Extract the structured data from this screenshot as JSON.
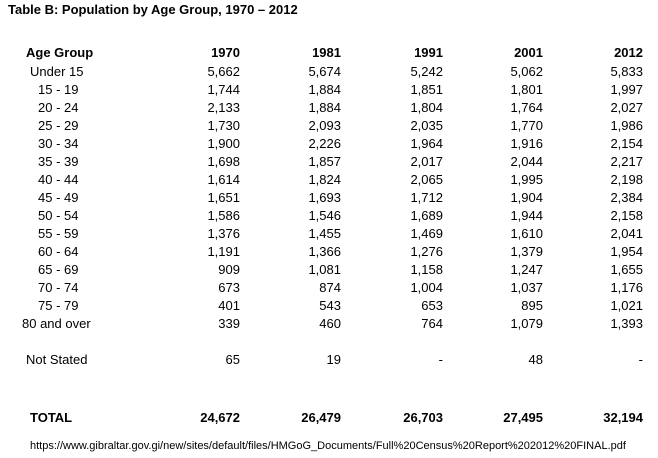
{
  "title": "Table B:  Population by Age Group, 1970 – 2012",
  "columns": [
    "Age Group",
    "1970",
    "1981",
    "1991",
    "2001",
    "2012"
  ],
  "rows": [
    {
      "group": "Under 15",
      "values": [
        "5,662",
        "5,674",
        "5,242",
        "5,062",
        "5,833"
      ]
    },
    {
      "group": "15 - 19",
      "values": [
        "1,744",
        "1,884",
        "1,851",
        "1,801",
        "1,997"
      ]
    },
    {
      "group": "20 - 24",
      "values": [
        "2,133",
        "1,884",
        "1,804",
        "1,764",
        "2,027"
      ]
    },
    {
      "group": "25 - 29",
      "values": [
        "1,730",
        "2,093",
        "2,035",
        "1,770",
        "1,986"
      ]
    },
    {
      "group": "30 - 34",
      "values": [
        "1,900",
        "2,226",
        "1,964",
        "1,916",
        "2,154"
      ]
    },
    {
      "group": "35 - 39",
      "values": [
        "1,698",
        "1,857",
        "2,017",
        "2,044",
        "2,217"
      ]
    },
    {
      "group": "40 - 44",
      "values": [
        "1,614",
        "1,824",
        "2,065",
        "1,995",
        "2,198"
      ]
    },
    {
      "group": "45 - 49",
      "values": [
        "1,651",
        "1,693",
        "1,712",
        "1,904",
        "2,384"
      ]
    },
    {
      "group": "50 - 54",
      "values": [
        "1,586",
        "1,546",
        "1,689",
        "1,944",
        "2,158"
      ]
    },
    {
      "group": "55 - 59",
      "values": [
        "1,376",
        "1,455",
        "1,469",
        "1,610",
        "2,041"
      ]
    },
    {
      "group": "60 - 64",
      "values": [
        "1,191",
        "1,366",
        "1,276",
        "1,379",
        "1,954"
      ]
    },
    {
      "group": "65 - 69",
      "values": [
        "909",
        "1,081",
        "1,158",
        "1,247",
        "1,655"
      ]
    },
    {
      "group": "70 - 74",
      "values": [
        "673",
        "874",
        "1,004",
        "1,037",
        "1,176"
      ]
    },
    {
      "group": "75 - 79",
      "values": [
        "401",
        "543",
        "653",
        "895",
        "1,021"
      ]
    },
    {
      "group": "80 and over",
      "values": [
        "339",
        "460",
        "764",
        "1,079",
        "1,393"
      ]
    }
  ],
  "not_stated": {
    "group": "Not Stated",
    "values": [
      "65",
      "19",
      "-",
      "48",
      "-"
    ]
  },
  "total": {
    "group": "TOTAL",
    "values": [
      "24,672",
      "26,479",
      "26,703",
      "27,495",
      "32,194"
    ]
  },
  "source": "https://www.gibraltar.gov.gi/new/sites/default/files/HMGoG_Documents/Full%20Census%20Report%202012%20FINAL.pdf"
}
